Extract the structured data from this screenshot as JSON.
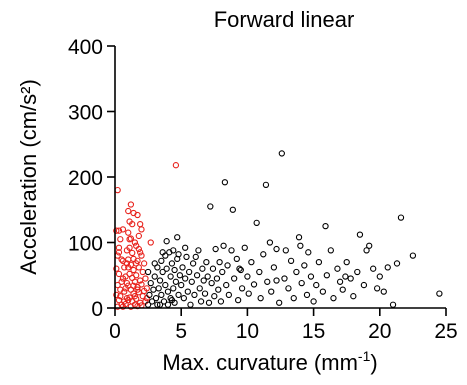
{
  "chart_data": {
    "type": "scatter",
    "title": "Forward linear",
    "xlabel": "Max. curvature (mm",
    "xlabel_sup": "-1",
    "xlabel_close": ")",
    "ylabel": "Acceleration (cm/s²)",
    "xlim": [
      0,
      25
    ],
    "ylim": [
      0,
      400
    ],
    "xticks": [
      "0",
      "5",
      "10",
      "15",
      "20",
      "25"
    ],
    "yticks": [
      "0",
      "100",
      "200",
      "300",
      "400"
    ],
    "grid": false,
    "legend": "none",
    "series": [
      {
        "color": "#e8211b",
        "points": [
          [
            0.2,
            180
          ],
          [
            0.1,
            118
          ],
          [
            0.3,
            118
          ],
          [
            0.6,
            120
          ],
          [
            0.4,
            105
          ],
          [
            0.3,
            92
          ],
          [
            0.2,
            80
          ],
          [
            0.5,
            74
          ],
          [
            0.1,
            60
          ],
          [
            0.3,
            52
          ],
          [
            0.6,
            45
          ],
          [
            0.2,
            35
          ],
          [
            0.4,
            28
          ],
          [
            0.1,
            20
          ],
          [
            0.3,
            12
          ],
          [
            0.5,
            5
          ],
          [
            0.2,
            2
          ],
          [
            0.7,
            62
          ],
          [
            0.8,
            48
          ],
          [
            0.9,
            38
          ],
          [
            0.7,
            25
          ],
          [
            0.9,
            15
          ],
          [
            0.8,
            6
          ],
          [
            0.6,
            2
          ],
          [
            1.0,
            148
          ],
          [
            1.2,
            158
          ],
          [
            1.4,
            145
          ],
          [
            1.1,
            132
          ],
          [
            1.3,
            128
          ],
          [
            1.0,
            115
          ],
          [
            1.2,
            106
          ],
          [
            1.5,
            100
          ],
          [
            1.1,
            92
          ],
          [
            1.3,
            84
          ],
          [
            1.0,
            74
          ],
          [
            1.2,
            66
          ],
          [
            1.4,
            58
          ],
          [
            1.1,
            52
          ],
          [
            1.3,
            46
          ],
          [
            1.5,
            40
          ],
          [
            1.0,
            34
          ],
          [
            1.2,
            28
          ],
          [
            1.4,
            22
          ],
          [
            1.1,
            16
          ],
          [
            1.3,
            10
          ],
          [
            1.5,
            5
          ],
          [
            1.2,
            2
          ],
          [
            1.7,
            142
          ],
          [
            1.9,
            128
          ],
          [
            1.8,
            110
          ],
          [
            1.6,
            95
          ],
          [
            1.9,
            85
          ],
          [
            1.7,
            72
          ],
          [
            1.8,
            62
          ],
          [
            1.6,
            50
          ],
          [
            1.9,
            42
          ],
          [
            1.7,
            32
          ],
          [
            1.8,
            24
          ],
          [
            1.6,
            14
          ],
          [
            1.9,
            8
          ],
          [
            1.7,
            3
          ],
          [
            2.0,
            80
          ],
          [
            2.2,
            68
          ],
          [
            2.1,
            55
          ],
          [
            2.3,
            45
          ],
          [
            2.0,
            36
          ],
          [
            2.2,
            26
          ],
          [
            2.1,
            18
          ],
          [
            2.3,
            10
          ],
          [
            2.0,
            4
          ],
          [
            0.3,
            85
          ],
          [
            0.6,
            72
          ],
          [
            0.9,
            68
          ],
          [
            1.4,
            75
          ],
          [
            1.6,
            68
          ],
          [
            1.0,
            62
          ],
          [
            0.5,
            40
          ],
          [
            1.4,
            34
          ],
          [
            0.8,
            30
          ],
          [
            1.7,
            28
          ],
          [
            0.4,
            18
          ],
          [
            1.0,
            12
          ],
          [
            1.5,
            18
          ],
          [
            0.7,
            10
          ],
          [
            2.4,
            30
          ],
          [
            2.4,
            15
          ],
          [
            1.8,
            90
          ],
          [
            2.0,
            120
          ],
          [
            1.1,
            105
          ],
          [
            0.9,
            88
          ],
          [
            2.7,
            100
          ],
          [
            4.6,
            218
          ]
        ]
      },
      {
        "color": "#000000",
        "points": [
          [
            2.5,
            55
          ],
          [
            2.7,
            38
          ],
          [
            2.6,
            20
          ],
          [
            2.8,
            10
          ],
          [
            2.5,
            5
          ],
          [
            2.9,
            28
          ],
          [
            3.0,
            48
          ],
          [
            3.1,
            15
          ],
          [
            3.2,
            62
          ],
          [
            3.3,
            30
          ],
          [
            3.2,
            5
          ],
          [
            3.4,
            42
          ],
          [
            3.5,
            72
          ],
          [
            3.5,
            20
          ],
          [
            3.6,
            55
          ],
          [
            3.7,
            10
          ],
          [
            3.8,
            80
          ],
          [
            3.8,
            35
          ],
          [
            3.9,
            60
          ],
          [
            4.0,
            25
          ],
          [
            4.0,
            5
          ],
          [
            4.1,
            85
          ],
          [
            4.2,
            48
          ],
          [
            4.2,
            15
          ],
          [
            4.3,
            68
          ],
          [
            4.4,
            30
          ],
          [
            4.5,
            58
          ],
          [
            4.5,
            8
          ],
          [
            4.6,
            40
          ],
          [
            4.7,
            75
          ],
          [
            4.8,
            20
          ],
          [
            4.9,
            50
          ],
          [
            3.0,
            68
          ],
          [
            3.4,
            5
          ],
          [
            3.6,
            85
          ],
          [
            4.4,
            88
          ],
          [
            4.8,
            82
          ],
          [
            4.7,
            108
          ],
          [
            5.0,
            35
          ],
          [
            5.1,
            62
          ],
          [
            5.2,
            15
          ],
          [
            5.3,
            45
          ],
          [
            5.4,
            78
          ],
          [
            5.5,
            25
          ],
          [
            5.6,
            55
          ],
          [
            5.7,
            5
          ],
          [
            5.8,
            40
          ],
          [
            5.9,
            68
          ],
          [
            6.0,
            20
          ],
          [
            6.2,
            50
          ],
          [
            6.3,
            88
          ],
          [
            6.4,
            30
          ],
          [
            6.5,
            10
          ],
          [
            6.6,
            60
          ],
          [
            6.7,
            42
          ],
          [
            6.8,
            22
          ],
          [
            6.9,
            70
          ],
          [
            7.0,
            48
          ],
          [
            7.1,
            8
          ],
          [
            7.2,
            155
          ],
          [
            7.3,
            38
          ],
          [
            7.4,
            60
          ],
          [
            7.5,
            18
          ],
          [
            7.6,
            90
          ],
          [
            7.7,
            45
          ],
          [
            7.8,
            28
          ],
          [
            7.9,
            70
          ],
          [
            8.0,
            10
          ],
          [
            8.1,
            55
          ],
          [
            8.2,
            95
          ],
          [
            8.3,
            192
          ],
          [
            8.4,
            35
          ],
          [
            8.5,
            65
          ],
          [
            8.6,
            20
          ],
          [
            8.8,
            88
          ],
          [
            8.9,
            150
          ],
          [
            9.0,
            45
          ],
          [
            9.2,
            75
          ],
          [
            9.3,
            12
          ],
          [
            9.5,
            58
          ],
          [
            9.6,
            30
          ],
          [
            9.8,
            92
          ],
          [
            10.0,
            48
          ],
          [
            10.1,
            22
          ],
          [
            10.3,
            70
          ],
          [
            10.5,
            36
          ],
          [
            10.7,
            130
          ],
          [
            10.9,
            55
          ],
          [
            11.0,
            15
          ],
          [
            11.2,
            82
          ],
          [
            11.4,
            188
          ],
          [
            11.5,
            40
          ],
          [
            11.7,
            100
          ],
          [
            11.8,
            25
          ],
          [
            12.0,
            62
          ],
          [
            12.2,
            90
          ],
          [
            12.4,
            8
          ],
          [
            12.6,
            236
          ],
          [
            12.8,
            45
          ],
          [
            12.9,
            88
          ],
          [
            13.1,
            30
          ],
          [
            13.3,
            72
          ],
          [
            13.5,
            15
          ],
          [
            13.7,
            55
          ],
          [
            13.9,
            108
          ],
          [
            14.1,
            38
          ],
          [
            14.3,
            65
          ],
          [
            14.5,
            20
          ],
          [
            14.6,
            85
          ],
          [
            14.8,
            48
          ],
          [
            15.0,
            10
          ],
          [
            15.2,
            35
          ],
          [
            15.4,
            70
          ],
          [
            15.7,
            25
          ],
          [
            15.9,
            125
          ],
          [
            16.0,
            50
          ],
          [
            16.3,
            88
          ],
          [
            16.5,
            15
          ],
          [
            16.8,
            60
          ],
          [
            17.0,
            40
          ],
          [
            17.2,
            28
          ],
          [
            17.5,
            70
          ],
          [
            17.8,
            45
          ],
          [
            18.0,
            18
          ],
          [
            18.3,
            55
          ],
          [
            18.5,
            112
          ],
          [
            18.8,
            35
          ],
          [
            19.0,
            88
          ],
          [
            19.2,
            95
          ],
          [
            19.5,
            60
          ],
          [
            19.8,
            30
          ],
          [
            20.0,
            48
          ],
          [
            20.3,
            25
          ],
          [
            20.6,
            62
          ],
          [
            21.0,
            5
          ],
          [
            21.3,
            68
          ],
          [
            21.6,
            138
          ],
          [
            22.5,
            80
          ],
          [
            24.5,
            22
          ],
          [
            5.3,
            92
          ],
          [
            6.1,
            78
          ],
          [
            9.4,
            60
          ],
          [
            12.2,
            42
          ],
          [
            14.0,
            95
          ],
          [
            17.4,
            48
          ],
          [
            3.9,
            102
          ],
          [
            4.3,
            12
          ]
        ]
      }
    ]
  }
}
